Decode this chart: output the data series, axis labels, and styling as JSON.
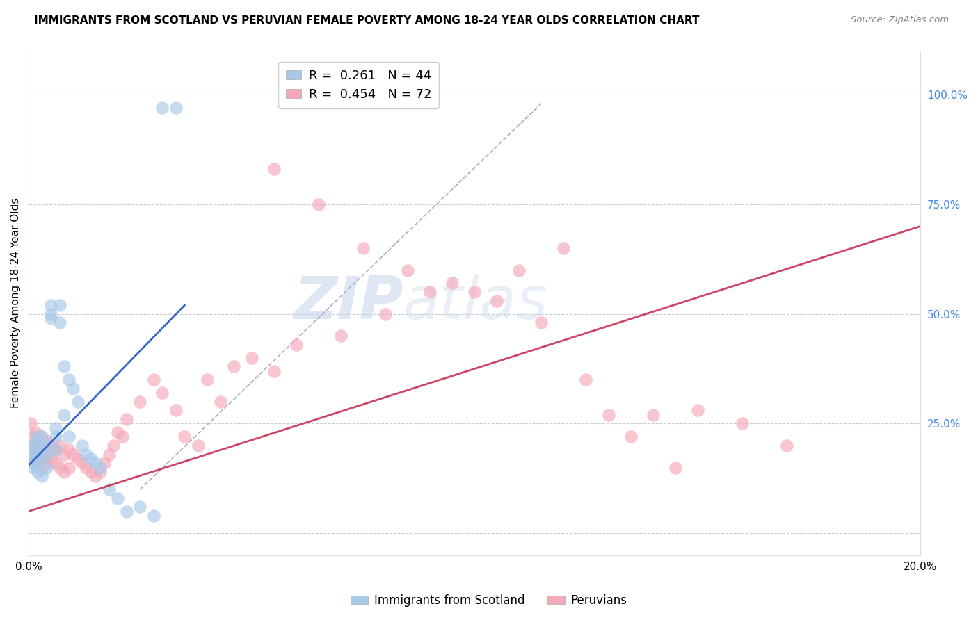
{
  "title": "IMMIGRANTS FROM SCOTLAND VS PERUVIAN FEMALE POVERTY AMONG 18-24 YEAR OLDS CORRELATION CHART",
  "source": "Source: ZipAtlas.com",
  "ylabel_left": "Female Poverty Among 18-24 Year Olds",
  "xlim": [
    0.0,
    0.2
  ],
  "ylim": [
    -0.05,
    1.1
  ],
  "xticks": [
    0.0,
    0.04,
    0.08,
    0.12,
    0.16,
    0.2
  ],
  "xticklabels": [
    "0.0%",
    "",
    "",
    "",
    "",
    "20.0%"
  ],
  "yticks_right": [
    0.0,
    0.25,
    0.5,
    0.75,
    1.0
  ],
  "ytick_right_labels": [
    "",
    "25.0%",
    "50.0%",
    "75.0%",
    "100.0%"
  ],
  "legend_blue_label": "R =  0.261   N = 44",
  "legend_pink_label": "R =  0.454   N = 72",
  "blue_color": "#a8c8e8",
  "pink_color": "#f4a8b8",
  "blue_line_color": "#3366cc",
  "pink_line_color": "#cc4466",
  "watermark_zip": "ZIP",
  "watermark_atlas": "atlas",
  "blue_scatter_x": [
    0.001,
    0.001,
    0.001,
    0.001,
    0.001,
    0.0015,
    0.0015,
    0.002,
    0.002,
    0.002,
    0.002,
    0.003,
    0.003,
    0.003,
    0.003,
    0.004,
    0.004,
    0.004,
    0.005,
    0.005,
    0.005,
    0.006,
    0.006,
    0.006,
    0.007,
    0.007,
    0.008,
    0.008,
    0.009,
    0.009,
    0.01,
    0.011,
    0.012,
    0.013,
    0.014,
    0.015,
    0.016,
    0.018,
    0.02,
    0.022,
    0.025,
    0.028,
    0.03,
    0.033
  ],
  "blue_scatter_y": [
    0.2,
    0.18,
    0.17,
    0.16,
    0.15,
    0.21,
    0.19,
    0.22,
    0.17,
    0.16,
    0.14,
    0.22,
    0.2,
    0.18,
    0.13,
    0.2,
    0.18,
    0.15,
    0.52,
    0.5,
    0.49,
    0.24,
    0.22,
    0.19,
    0.52,
    0.48,
    0.38,
    0.27,
    0.35,
    0.22,
    0.33,
    0.3,
    0.2,
    0.18,
    0.17,
    0.16,
    0.15,
    0.1,
    0.08,
    0.05,
    0.06,
    0.04,
    0.97,
    0.97
  ],
  "pink_scatter_x": [
    0.0005,
    0.001,
    0.001,
    0.001,
    0.001,
    0.0015,
    0.002,
    0.002,
    0.002,
    0.003,
    0.003,
    0.003,
    0.003,
    0.004,
    0.004,
    0.004,
    0.005,
    0.005,
    0.006,
    0.006,
    0.007,
    0.007,
    0.008,
    0.008,
    0.009,
    0.009,
    0.01,
    0.011,
    0.012,
    0.013,
    0.014,
    0.015,
    0.016,
    0.017,
    0.018,
    0.019,
    0.02,
    0.021,
    0.022,
    0.025,
    0.028,
    0.03,
    0.033,
    0.035,
    0.038,
    0.04,
    0.043,
    0.046,
    0.05,
    0.055,
    0.06,
    0.07,
    0.08,
    0.09,
    0.1,
    0.11,
    0.12,
    0.13,
    0.14,
    0.15,
    0.16,
    0.17,
    0.055,
    0.065,
    0.075,
    0.085,
    0.095,
    0.105,
    0.115,
    0.125,
    0.135,
    0.145
  ],
  "pink_scatter_y": [
    0.25,
    0.22,
    0.2,
    0.18,
    0.16,
    0.23,
    0.21,
    0.19,
    0.17,
    0.22,
    0.19,
    0.17,
    0.15,
    0.21,
    0.18,
    0.16,
    0.2,
    0.17,
    0.19,
    0.16,
    0.2,
    0.15,
    0.18,
    0.14,
    0.19,
    0.15,
    0.18,
    0.17,
    0.16,
    0.15,
    0.14,
    0.13,
    0.14,
    0.16,
    0.18,
    0.2,
    0.23,
    0.22,
    0.26,
    0.3,
    0.35,
    0.32,
    0.28,
    0.22,
    0.2,
    0.35,
    0.3,
    0.38,
    0.4,
    0.37,
    0.43,
    0.45,
    0.5,
    0.55,
    0.55,
    0.6,
    0.65,
    0.27,
    0.27,
    0.28,
    0.25,
    0.2,
    0.83,
    0.75,
    0.65,
    0.6,
    0.57,
    0.53,
    0.48,
    0.35,
    0.22,
    0.15
  ],
  "blue_line_x": [
    0.0,
    0.035
  ],
  "blue_line_y": [
    0.155,
    0.52
  ],
  "pink_line_x": [
    0.0,
    0.2
  ],
  "pink_line_y": [
    0.05,
    0.7
  ],
  "diag_line_x": [
    0.025,
    0.115
  ],
  "diag_line_y": [
    0.1,
    0.98
  ]
}
